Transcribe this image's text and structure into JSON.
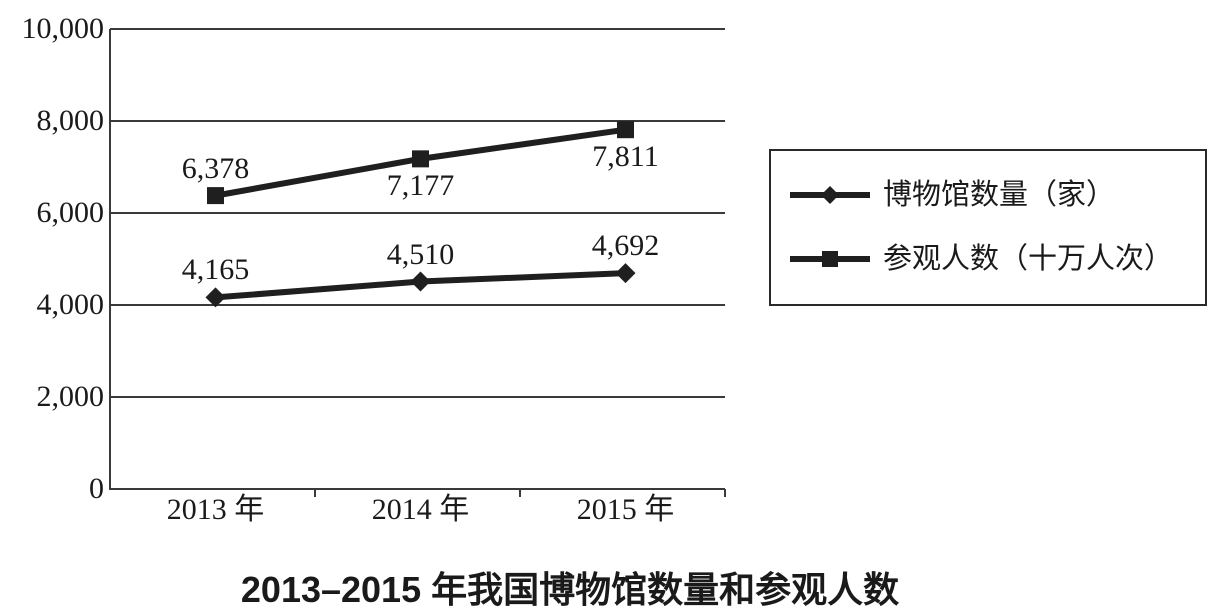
{
  "chart_data": {
    "type": "line",
    "title": "2013–2015 年我国博物馆数量和参观人数",
    "categories": [
      "2013 年",
      "2014 年",
      "2015 年"
    ],
    "series": [
      {
        "name": "博物馆数量（家）",
        "marker": "diamond",
        "values": [
          4165,
          4510,
          4692
        ],
        "data_labels": [
          "4,165",
          "4,510",
          "4,692"
        ],
        "label_side": [
          "above",
          "above",
          "above"
        ]
      },
      {
        "name": "参观人数（十万人次）",
        "marker": "square",
        "values": [
          6378,
          7177,
          7811
        ],
        "data_labels": [
          "6,378",
          "7,177",
          "7,811"
        ],
        "label_side": [
          "above",
          "below",
          "below"
        ]
      }
    ],
    "ylim": [
      0,
      10000
    ],
    "yticks": [
      {
        "value": 0,
        "label": "0"
      },
      {
        "value": 2000,
        "label": "2,000"
      },
      {
        "value": 4000,
        "label": "4,000"
      },
      {
        "value": 6000,
        "label": "6,000"
      },
      {
        "value": 8000,
        "label": "8,000"
      },
      {
        "value": 10000,
        "label": "10,000"
      }
    ],
    "grid": true,
    "legend_position": "right"
  },
  "colors": {
    "series": "#1f1f1f",
    "grid": "#3a3a3a",
    "axis": "#3a3a3a",
    "text": "#1a1a1a",
    "background": "#ffffff"
  }
}
